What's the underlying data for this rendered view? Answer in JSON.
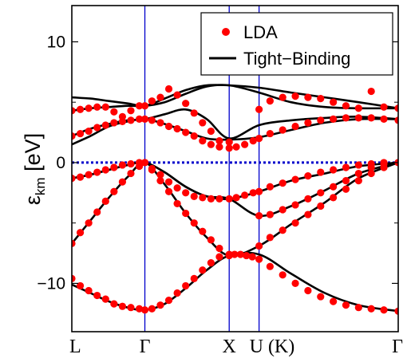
{
  "chart_data": {
    "type": "line",
    "title": "",
    "xlabel": "",
    "ylabel": "ε",
    "ylabel_sub": "km",
    "ylabel_unit": " [eV]",
    "ylim": [
      -14,
      13
    ],
    "yticks": [
      10,
      0,
      -10
    ],
    "ytick_labels": [
      "10",
      "0",
      "−10"
    ],
    "xlim": [
      0,
      3.87
    ],
    "kpoints": [
      {
        "label": "L",
        "x": 0
      },
      {
        "label": "Γ",
        "x": 0.866
      },
      {
        "label": "X",
        "x": 1.866
      },
      {
        "label": "U (K)",
        "x": 2.22
      },
      {
        "label": "Γ",
        "x": 3.87
      }
    ],
    "fermi_level": 0,
    "grid": false,
    "legend": {
      "position": "top-right",
      "entries": [
        {
          "name": "LDA",
          "marker": "dot",
          "color": "#ff0000"
        },
        {
          "name": "Tight−Binding",
          "marker": "line",
          "color": "#000000"
        }
      ]
    },
    "colors": {
      "lda": "#ff0000",
      "tb": "#000000",
      "kline": "#0000cc",
      "fermi": "#0000cc"
    },
    "series": [
      {
        "name": "Tight−Binding",
        "band": 1,
        "x": [
          0,
          0.22,
          0.44,
          0.66,
          0.866,
          1.1,
          1.35,
          1.6,
          1.866,
          2.22,
          2.6,
          3.0,
          3.4,
          3.87
        ],
        "values": [
          -10.1,
          -10.8,
          -11.5,
          -12.0,
          -12.2,
          -11.7,
          -10.4,
          -8.9,
          -7.7,
          -7.6,
          -9.2,
          -10.8,
          -11.8,
          -12.3
        ]
      },
      {
        "name": "Tight−Binding",
        "band": 2,
        "x": [
          0,
          0.22,
          0.44,
          0.66,
          0.866,
          1.1,
          1.35,
          1.6,
          1.866,
          2.22,
          2.6,
          3.0,
          3.4,
          3.87
        ],
        "values": [
          -6.7,
          -4.8,
          -2.9,
          -1.2,
          0,
          -1.8,
          -4.2,
          -6.2,
          -7.7,
          -6.9,
          -5.1,
          -3.3,
          -1.3,
          0
        ]
      },
      {
        "name": "Tight−Binding",
        "band": 3,
        "x": [
          0,
          0.22,
          0.44,
          0.66,
          0.866,
          1.1,
          1.35,
          1.6,
          1.866,
          2.22,
          2.6,
          3.0,
          3.4,
          3.87
        ],
        "values": [
          -1.3,
          -1.0,
          -0.6,
          -0.2,
          0,
          -0.8,
          -2.0,
          -2.8,
          -3.0,
          -2.4,
          -1.5,
          -0.9,
          -0.3,
          0
        ]
      },
      {
        "name": "Tight−Binding",
        "band": 4,
        "x": [
          0,
          0.22,
          0.44,
          0.66,
          0.866,
          1.1,
          1.35,
          1.6,
          1.866,
          2.22,
          2.6,
          3.0,
          3.4,
          3.87
        ],
        "values": [
          -1.3,
          -1.0,
          -0.6,
          -0.2,
          0,
          -0.8,
          -2.0,
          -2.8,
          -3.0,
          -4.4,
          -3.6,
          -2.3,
          -0.9,
          0
        ]
      },
      {
        "name": "Tight−Binding",
        "band": 5,
        "x": [
          0,
          0.22,
          0.44,
          0.66,
          0.866,
          1.1,
          1.35,
          1.6,
          1.866,
          2.22,
          2.6,
          3.0,
          3.4,
          3.87
        ],
        "values": [
          1.5,
          2.2,
          3.0,
          3.4,
          3.6,
          3.2,
          2.6,
          2.0,
          1.9,
          2.1,
          2.7,
          3.3,
          3.6,
          3.6
        ]
      },
      {
        "name": "Tight−Binding",
        "band": 6,
        "x": [
          0,
          0.22,
          0.44,
          0.66,
          0.866,
          1.1,
          1.35,
          1.6,
          1.866,
          2.22,
          2.6,
          3.0,
          3.4,
          3.87
        ],
        "values": [
          2.2,
          2.8,
          3.2,
          3.5,
          3.6,
          4.0,
          4.4,
          3.6,
          2.0,
          3.1,
          3.5,
          3.7,
          3.8,
          3.6
        ]
      },
      {
        "name": "Tight−Binding",
        "band": 7,
        "x": [
          0,
          0.22,
          0.44,
          0.66,
          0.866,
          1.1,
          1.35,
          1.6,
          1.866,
          2.22,
          2.6,
          3.0,
          3.4,
          3.87
        ],
        "values": [
          4.3,
          4.5,
          4.6,
          4.7,
          4.7,
          5.0,
          5.7,
          6.3,
          6.4,
          5.8,
          5.0,
          4.6,
          4.5,
          4.5
        ]
      },
      {
        "name": "Tight−Binding",
        "band": 8,
        "x": [
          0,
          0.22,
          0.44,
          0.66,
          0.866,
          1.1,
          1.35,
          1.6,
          1.866,
          2.22,
          2.6,
          3.0,
          3.4,
          3.87
        ],
        "values": [
          5.4,
          5.3,
          5.1,
          4.9,
          4.7,
          5.3,
          6.0,
          6.4,
          6.4,
          6.2,
          5.8,
          5.4,
          5.0,
          4.5
        ]
      }
    ],
    "lda_points": [
      {
        "x": [
          0,
          0.1,
          0.2,
          0.3,
          0.4,
          0.5,
          0.6,
          0.7,
          0.8,
          0.866,
          0.95,
          1.05,
          1.15,
          1.25,
          1.35,
          1.45,
          1.55,
          1.65,
          1.75,
          1.866,
          1.93,
          2.0,
          2.07,
          2.14,
          2.22,
          2.35,
          2.5,
          2.65,
          2.8,
          2.95,
          3.1,
          3.25,
          3.4,
          3.55,
          3.7,
          3.87
        ],
        "values": [
          -9.6,
          -10.2,
          -10.6,
          -11.0,
          -11.3,
          -11.7,
          -11.9,
          -12.0,
          -12.1,
          -12.2,
          -12.1,
          -11.8,
          -11.4,
          -10.8,
          -10.2,
          -9.6,
          -8.9,
          -8.3,
          -7.8,
          -7.7,
          -7.6,
          -7.6,
          -7.7,
          -7.8,
          -8.0,
          -8.6,
          -9.3,
          -10.0,
          -10.6,
          -11.1,
          -11.5,
          -11.8,
          -12.0,
          -12.1,
          -12.2,
          -12.3
        ]
      },
      {
        "x": [
          0,
          0.1,
          0.2,
          0.3,
          0.4,
          0.5,
          0.6,
          0.7,
          0.8,
          0.866,
          0.95,
          1.05,
          1.15,
          1.25,
          1.35,
          1.45,
          1.55,
          1.65,
          1.75,
          1.866,
          2.22,
          2.35,
          2.5,
          2.65,
          2.8,
          2.95,
          3.1,
          3.25,
          3.4,
          3.55,
          3.7,
          3.87
        ],
        "values": [
          -6.7,
          -5.8,
          -5.0,
          -4.1,
          -3.2,
          -2.4,
          -1.6,
          -0.9,
          -0.3,
          0,
          -0.6,
          -1.5,
          -2.4,
          -3.4,
          -4.2,
          -5.0,
          -5.7,
          -6.4,
          -7.1,
          -7.6,
          -6.9,
          -6.2,
          -5.6,
          -5.0,
          -4.3,
          -3.6,
          -2.9,
          -2.2,
          -1.5,
          -0.9,
          -0.4,
          0
        ]
      },
      {
        "x": [
          0,
          0.1,
          0.2,
          0.3,
          0.4,
          0.5,
          0.6,
          0.7,
          0.8,
          0.866,
          0.95,
          1.05,
          1.15,
          1.25,
          1.35,
          1.45,
          1.55,
          1.65,
          1.75,
          1.866,
          1.95,
          2.05,
          2.15,
          2.22,
          2.35,
          2.5,
          2.65,
          2.8,
          2.95,
          3.1,
          3.25,
          3.4,
          3.55,
          3.7,
          3.87
        ],
        "values": [
          -1.3,
          -1.2,
          -1.0,
          -0.8,
          -0.6,
          -0.4,
          -0.2,
          -0.1,
          0,
          0,
          -0.5,
          -1.0,
          -1.6,
          -2.1,
          -2.5,
          -2.8,
          -2.9,
          -3.0,
          -3.0,
          -3.0,
          -2.9,
          -2.7,
          -2.5,
          -2.4,
          -2.0,
          -1.7,
          -1.4,
          -1.1,
          -0.8,
          -0.6,
          -0.4,
          -0.2,
          -0.1,
          0,
          0
        ]
      },
      {
        "x": [
          2.22,
          2.35,
          2.5,
          2.65,
          2.8,
          2.95,
          3.1,
          3.25,
          3.4,
          3.55,
          3.7
        ],
        "values": [
          -4.4,
          -4.3,
          -3.9,
          -3.5,
          -3.0,
          -2.5,
          -2.0,
          -1.5,
          -0.9,
          -0.4,
          -0.1
        ]
      },
      {
        "x": [
          0,
          0.1,
          0.2,
          0.3,
          0.4,
          0.5,
          0.6,
          0.7,
          0.8,
          0.866,
          0.95,
          1.05,
          1.15,
          1.25,
          1.35,
          1.45,
          1.55,
          1.65,
          1.75,
          1.866,
          1.95,
          2.05,
          2.15,
          2.22,
          2.35,
          2.5,
          2.65,
          2.8,
          2.95,
          3.1,
          3.25,
          3.4,
          3.55,
          3.7,
          3.87
        ],
        "values": [
          2.2,
          2.4,
          2.6,
          2.9,
          3.1,
          3.3,
          3.4,
          3.5,
          3.6,
          3.6,
          3.5,
          3.3,
          3.0,
          2.8,
          2.5,
          2.2,
          1.8,
          1.5,
          1.3,
          1.2,
          1.3,
          1.5,
          1.8,
          2.0,
          2.4,
          2.7,
          3.0,
          3.3,
          3.5,
          3.6,
          3.7,
          3.7,
          3.7,
          3.6,
          3.5
        ]
      },
      {
        "x": [
          0,
          0.1,
          0.2,
          0.3,
          0.4,
          0.5,
          0.6,
          0.7,
          0.8,
          0.866,
          0.95,
          1.05,
          1.15,
          1.25,
          1.35,
          1.45,
          1.55,
          1.65,
          1.75,
          1.866,
          2.22,
          2.35,
          2.5,
          2.65,
          2.8,
          2.95,
          3.1,
          3.25,
          3.4,
          3.55,
          3.7,
          3.87
        ],
        "values": [
          4.3,
          4.4,
          4.5,
          4.6,
          4.6,
          4.2,
          3.8,
          4.3,
          4.7,
          4.7,
          5.1,
          5.4,
          6.1,
          5.6,
          4.9,
          4.1,
          3.3,
          2.6,
          1.8,
          1.7,
          4.4,
          5.1,
          5.4,
          5.5,
          5.4,
          5.3,
          5.0,
          4.7,
          4.5,
          5.9,
          4.6,
          4.5
        ]
      }
    ]
  }
}
